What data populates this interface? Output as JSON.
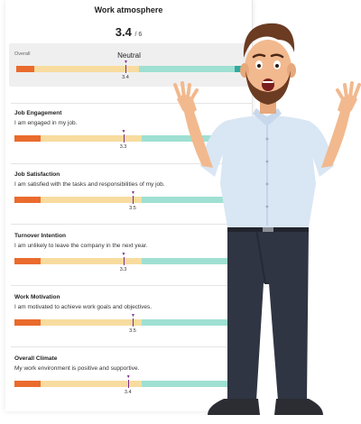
{
  "header": {
    "title": "Work atmosphere",
    "score": "3.4",
    "score_max": "/ 6"
  },
  "overall": {
    "label": "Overall",
    "status": "Neutral",
    "value": 3.4,
    "value_text": "3.4"
  },
  "items": [
    {
      "title": "Job Engagement",
      "description": "I am engaged in my job.",
      "value": 3.3,
      "value_text": "3.3"
    },
    {
      "title": "Job Satisfaction",
      "description": "I am satisfied with the tasks and responsibilities of my job.",
      "value": 3.5,
      "value_text": "3.5"
    },
    {
      "title": "Turnover Intention",
      "description": "I am unlikely to leave the company in the next year.",
      "value": 3.3,
      "value_text": "3.3"
    },
    {
      "title": "Work Motivation",
      "description": "I am motivated to achieve work goals and objectives.",
      "value": 3.5,
      "value_text": "3.5"
    },
    {
      "title": "Overall Climate",
      "description": "My work environment is positive and supportive.",
      "value": 3.4,
      "value_text": "3.4"
    }
  ],
  "colors": {
    "low": "#ea6b2d",
    "neutral": "#f8dc9f",
    "high": "#9fe0d2",
    "very_high": "#32aaa0",
    "marker": "#7a2c8c"
  }
}
